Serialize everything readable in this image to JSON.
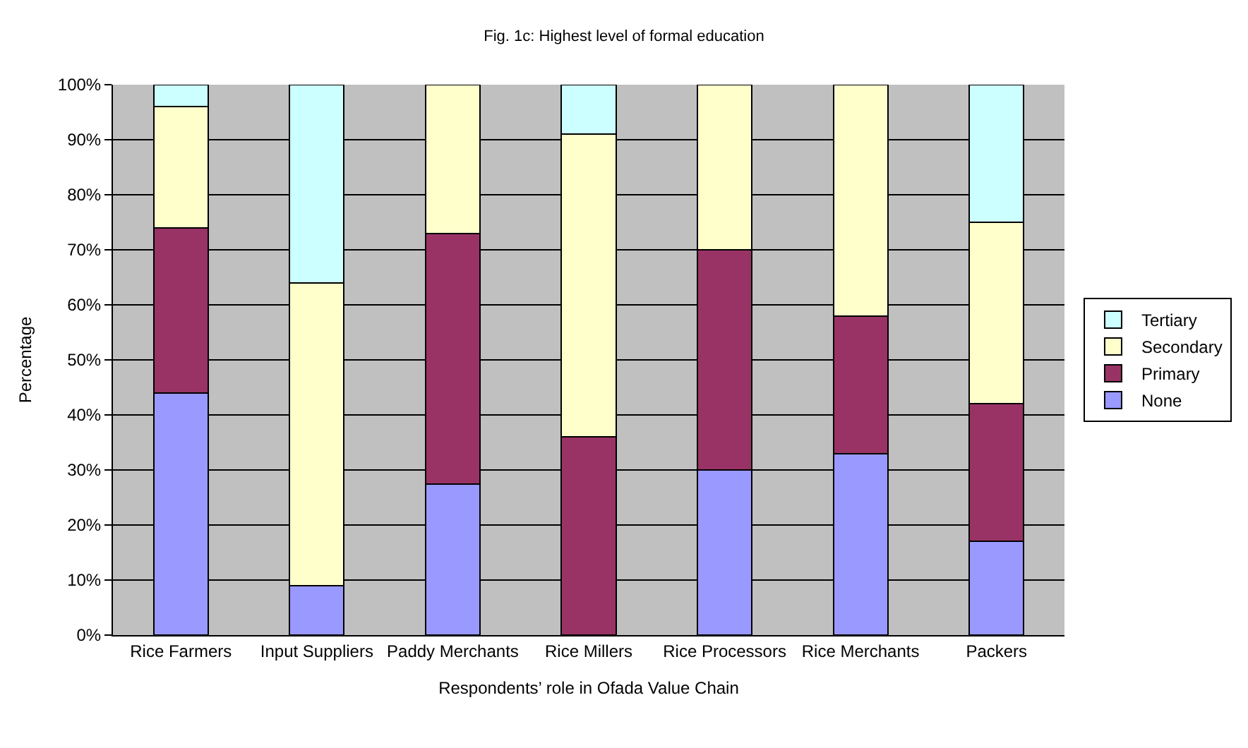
{
  "chart_data": {
    "type": "bar",
    "title": "Fig. 1c: Highest level of formal education",
    "xlabel": "Respondents’ role in Ofada Value Chain",
    "ylabel": "Percentage",
    "categories": [
      "Rice Farmers",
      "Input Suppliers",
      "Paddy Merchants",
      "Rice Millers",
      "Rice Processors",
      "Rice Merchants",
      "Packers"
    ],
    "stacked": true,
    "series": [
      {
        "name": "None",
        "color": "#9999ff",
        "values": [
          44,
          9,
          27.5,
          0,
          30,
          33,
          17
        ]
      },
      {
        "name": "Primary",
        "color": "#993366",
        "values": [
          30,
          0,
          45.5,
          36,
          40,
          25,
          25
        ]
      },
      {
        "name": "Secondary",
        "color": "#ffffcc",
        "values": [
          22,
          55,
          27,
          55,
          30,
          42,
          33
        ]
      },
      {
        "name": "Tertiary",
        "color": "#ccffff",
        "values": [
          4,
          36,
          0,
          9,
          0,
          0,
          25
        ]
      }
    ],
    "ylim": [
      0,
      100
    ],
    "yticks": [
      {
        "value": 0,
        "label": "0%"
      },
      {
        "value": 10,
        "label": "10%"
      },
      {
        "value": 20,
        "label": "20%"
      },
      {
        "value": 30,
        "label": "30%"
      },
      {
        "value": 40,
        "label": "40%"
      },
      {
        "value": 50,
        "label": "50%"
      },
      {
        "value": 60,
        "label": "60%"
      },
      {
        "value": 70,
        "label": "70%"
      },
      {
        "value": 80,
        "label": "80%"
      },
      {
        "value": 90,
        "label": "90%"
      },
      {
        "value": 100,
        "label": "100%"
      }
    ],
    "grid": "y",
    "legend": "right"
  }
}
